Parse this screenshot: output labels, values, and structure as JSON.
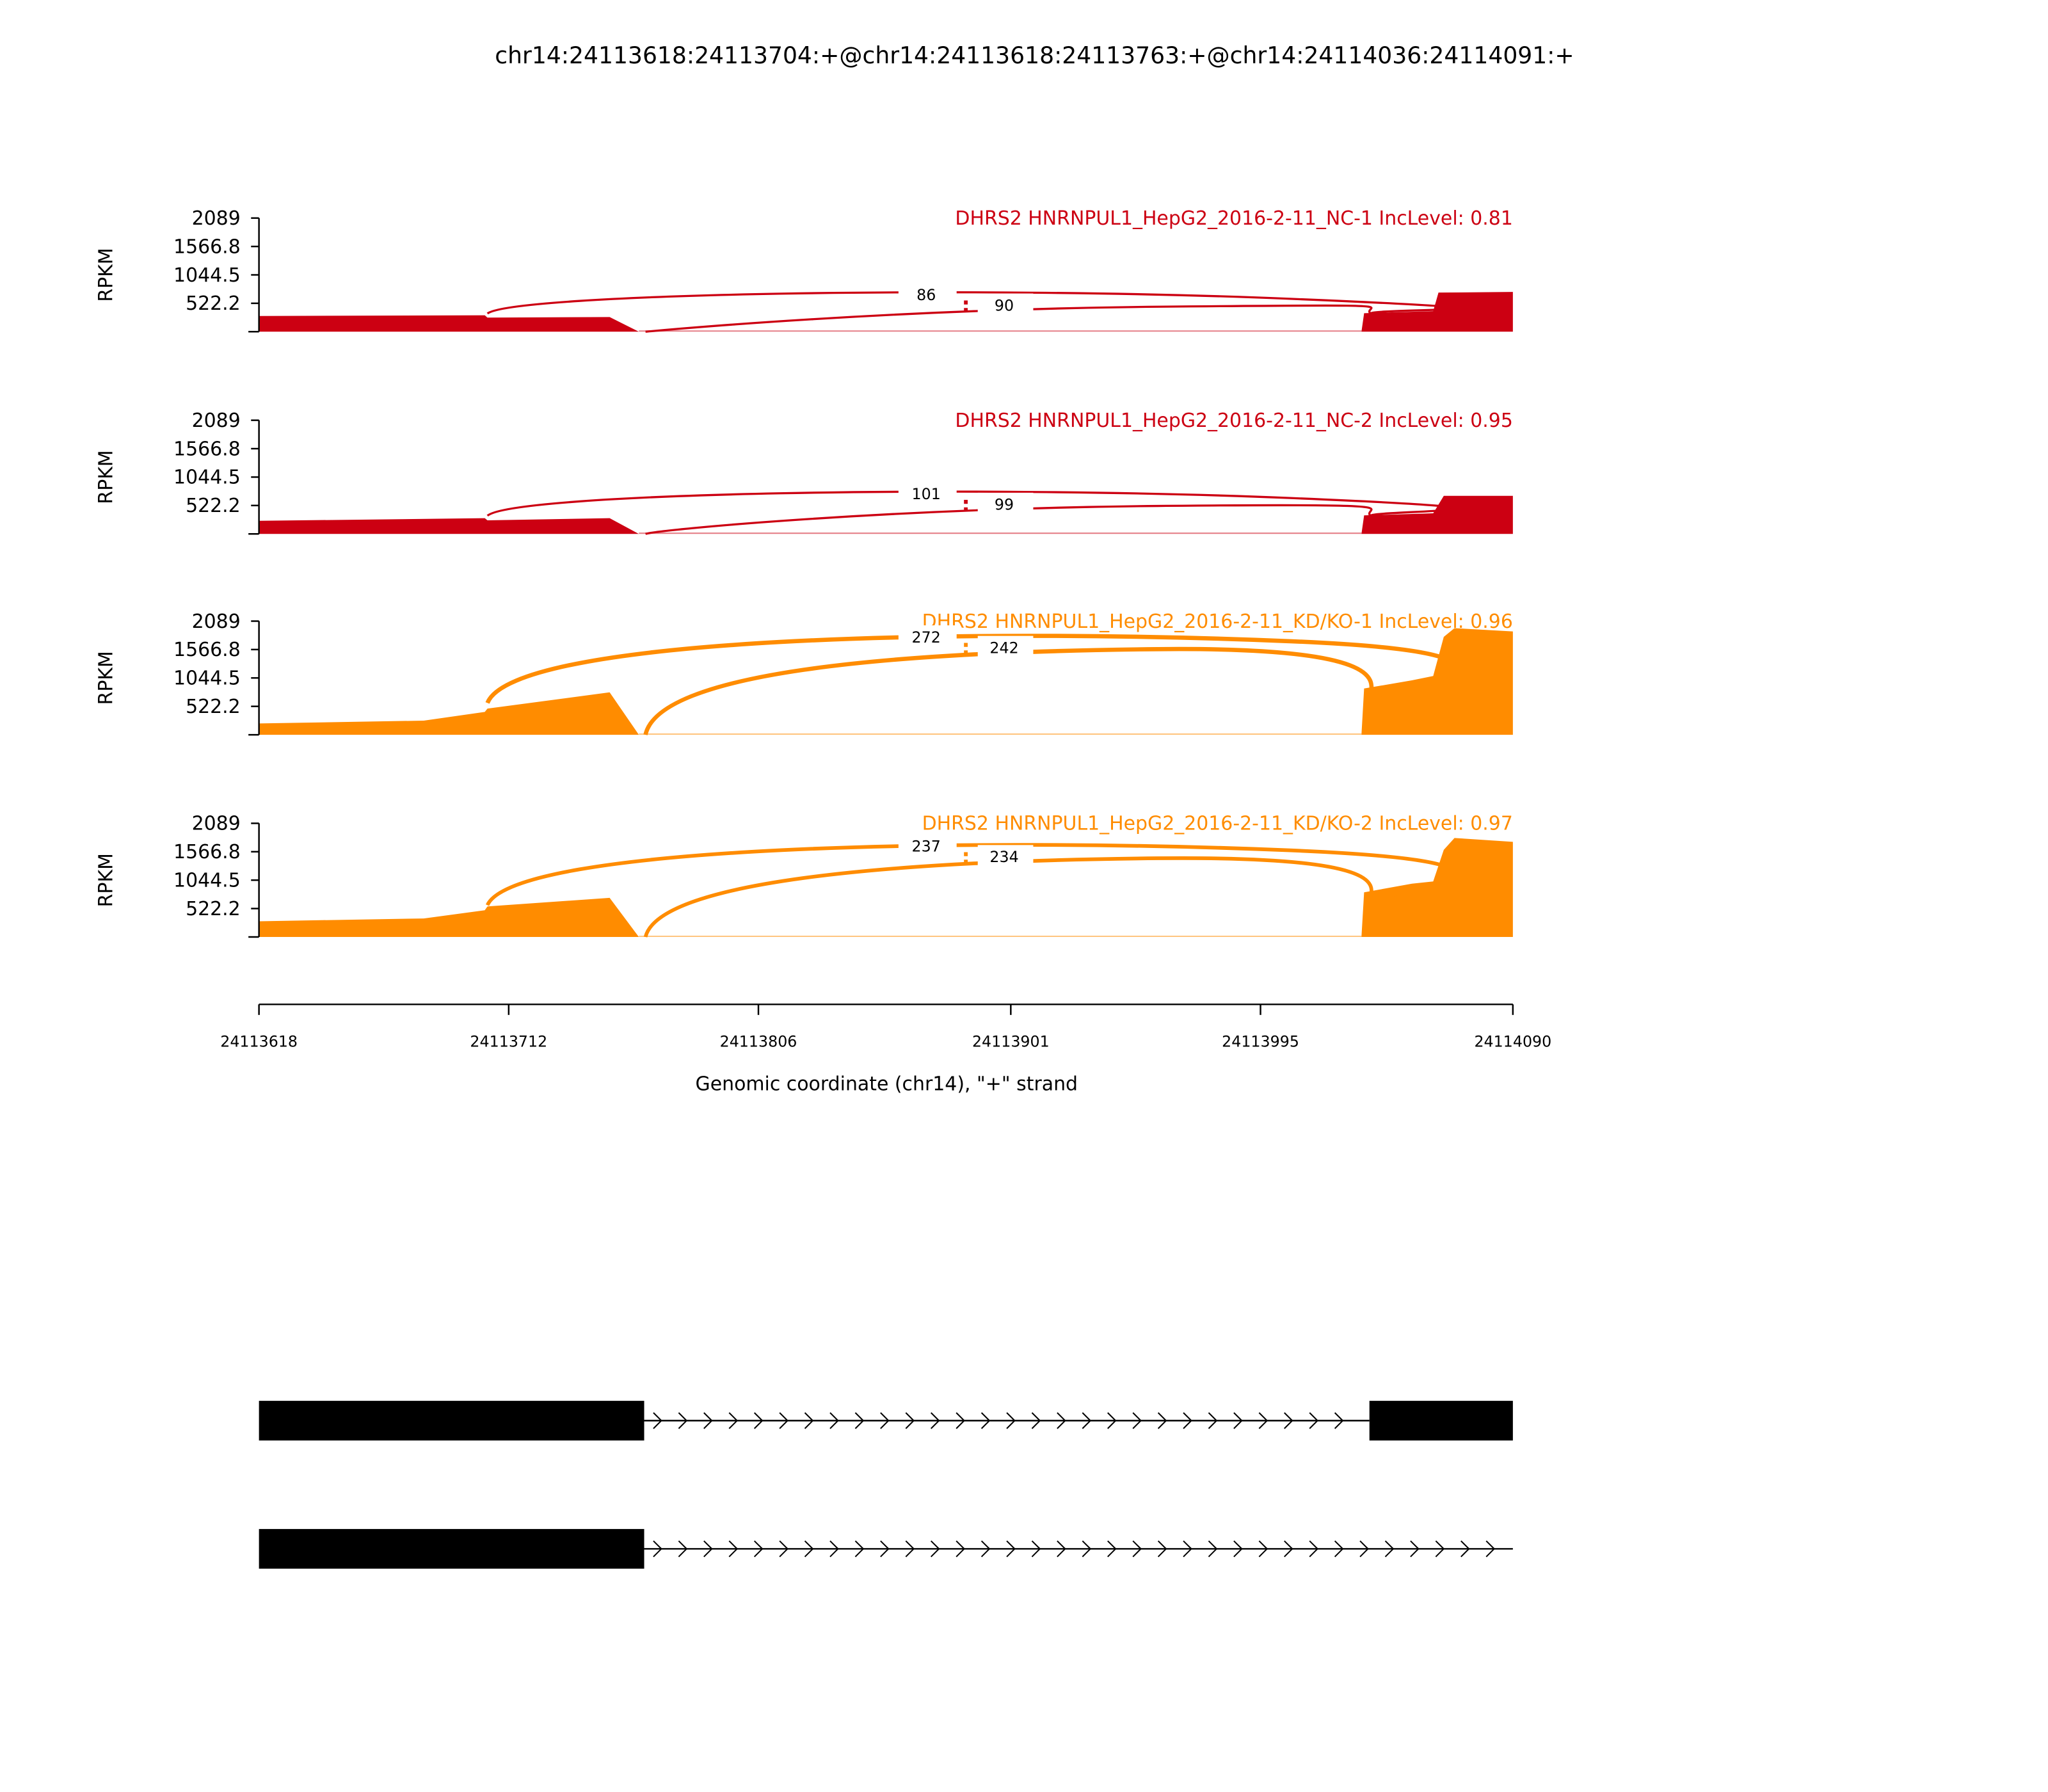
{
  "chart_data": {
    "type": "area",
    "title": "chr14:24113618:24113704:+@chr14:24113618:24113763:+@chr14:24114036:24114091:+",
    "xlabel": "Genomic coordinate (chr14), \"+\" strand",
    "ylabel": "RPKM",
    "xlim": [
      24113618,
      24114090
    ],
    "ylim": [
      0,
      2089
    ],
    "xticks": [
      "24113618",
      "24113712",
      "24113806",
      "24113901",
      "24113995",
      "24114090"
    ],
    "yticks": [
      "2089",
      "1566.8",
      "1044.5",
      "522.2"
    ],
    "series": [
      {
        "name": "DHRS2 HNRNPUL1_HepG2_2016-2-11_NC-1 IncLevel: 0.81",
        "color": "#cc0012",
        "coverage": [
          [
            24113618,
            290
          ],
          [
            24113703,
            300
          ],
          [
            24113704,
            260
          ],
          [
            24113750,
            270
          ],
          [
            24113761,
            0
          ],
          [
            24114033,
            0
          ],
          [
            24114034,
            340
          ],
          [
            24114060,
            380
          ],
          [
            24114062,
            720
          ],
          [
            24114090,
            730
          ]
        ],
        "junctions": [
          {
            "start": 24113704,
            "end": 24114036,
            "count": "86"
          },
          {
            "start": 24113763,
            "end": 24114036,
            "count": "90"
          }
        ]
      },
      {
        "name": "DHRS2 HNRNPUL1_HepG2_2016-2-11_NC-2 IncLevel: 0.95",
        "color": "#cc0012",
        "coverage": [
          [
            24113618,
            240
          ],
          [
            24113703,
            290
          ],
          [
            24113704,
            250
          ],
          [
            24113750,
            290
          ],
          [
            24113761,
            0
          ],
          [
            24114033,
            0
          ],
          [
            24114034,
            340
          ],
          [
            24114060,
            380
          ],
          [
            24114064,
            700
          ],
          [
            24114090,
            700
          ]
        ],
        "junctions": [
          {
            "start": 24113704,
            "end": 24114036,
            "count": "101"
          },
          {
            "start": 24113763,
            "end": 24114036,
            "count": "99"
          }
        ]
      },
      {
        "name": "DHRS2 HNRNPUL1_HepG2_2016-2-11_KD/KO-1 IncLevel: 0.96",
        "color": "#ff8c00",
        "coverage": [
          [
            24113618,
            210
          ],
          [
            24113680,
            260
          ],
          [
            24113703,
            420
          ],
          [
            24113704,
            480
          ],
          [
            24113750,
            780
          ],
          [
            24113761,
            0
          ],
          [
            24114033,
            0
          ],
          [
            24114034,
            850
          ],
          [
            24114052,
            1000
          ],
          [
            24114060,
            1080
          ],
          [
            24114064,
            1800
          ],
          [
            24114068,
            1960
          ],
          [
            24114090,
            1900
          ]
        ],
        "junctions": [
          {
            "start": 24113704,
            "end": 24114036,
            "count": "272"
          },
          {
            "start": 24113763,
            "end": 24114036,
            "count": "242"
          }
        ]
      },
      {
        "name": "DHRS2 HNRNPUL1_HepG2_2016-2-11_KD/KO-2 IncLevel: 0.97",
        "color": "#ff8c00",
        "coverage": [
          [
            24113618,
            290
          ],
          [
            24113680,
            340
          ],
          [
            24113703,
            490
          ],
          [
            24113704,
            560
          ],
          [
            24113750,
            720
          ],
          [
            24113761,
            0
          ],
          [
            24114033,
            0
          ],
          [
            24114034,
            820
          ],
          [
            24114052,
            980
          ],
          [
            24114060,
            1020
          ],
          [
            24114064,
            1600
          ],
          [
            24114068,
            1820
          ],
          [
            24114090,
            1750
          ]
        ],
        "junctions": [
          {
            "start": 24113704,
            "end": 24114036,
            "count": "237"
          },
          {
            "start": 24113763,
            "end": 24114036,
            "count": "234"
          }
        ]
      }
    ],
    "isoforms": [
      {
        "exons": [
          [
            24113618,
            24113763
          ],
          [
            24114036,
            24114091
          ]
        ]
      },
      {
        "exons": [
          [
            24113618,
            24113763
          ]
        ],
        "intron_to": 24114090
      }
    ]
  }
}
